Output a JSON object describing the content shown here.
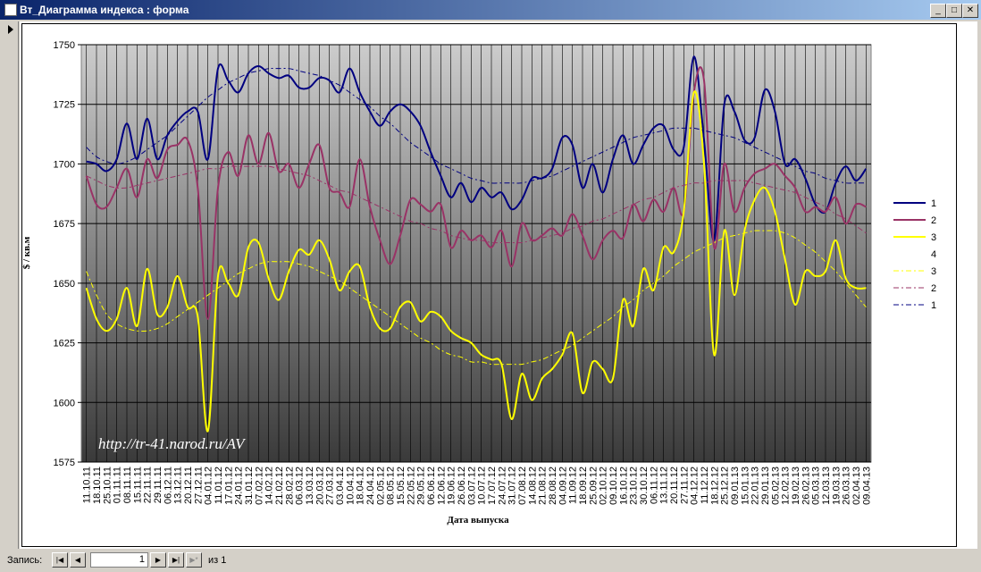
{
  "window": {
    "title": "Вт_Диаграмма индекса : форма",
    "record_label": "Запись:",
    "record": "1",
    "of": "из 1"
  },
  "chart_data": {
    "type": "line",
    "ylabel": "$ / кв.м",
    "xlabel": "Дата выпуска",
    "annotation": "http://tr-41.narod.ru/AV",
    "ylim": [
      1575,
      1750
    ],
    "yticks": [
      1575,
      1600,
      1625,
      1650,
      1675,
      1700,
      1725,
      1750
    ],
    "grid": true,
    "legend": "right",
    "categories": [
      "11.10.11",
      "18.10.11",
      "25.10.11",
      "01.11.11",
      "08.11.11",
      "15.11.11",
      "22.11.11",
      "29.11.11",
      "06.12.11",
      "13.12.11",
      "20.12.11",
      "27.12.11",
      "04.01.12",
      "11.01.12",
      "17.01.12",
      "24.01.12",
      "31.01.12",
      "07.02.12",
      "14.02.12",
      "21.02.12",
      "28.02.12",
      "06.03.12",
      "13.03.12",
      "20.03.12",
      "27.03.12",
      "03.04.12",
      "10.04.12",
      "18.04.12",
      "24.04.12",
      "02.05.12",
      "08.05.12",
      "15.05.12",
      "22.05.12",
      "29.05.12",
      "06.06.12",
      "12.06.12",
      "19.06.12",
      "26.06.12",
      "03.07.12",
      "10.07.12",
      "17.07.12",
      "24.07.12",
      "31.07.12",
      "07.08.12",
      "14.08.12",
      "21.08.12",
      "28.08.12",
      "04.09.12",
      "11.09.12",
      "18.09.12",
      "25.09.12",
      "02.10.12",
      "09.10.12",
      "16.10.12",
      "23.10.12",
      "30.10.12",
      "06.11.12",
      "13.11.12",
      "20.11.12",
      "27.11.12",
      "04.12.12",
      "11.12.12",
      "18.12.12",
      "25.12.12",
      "09.01.13",
      "15.01.13",
      "22.01.13",
      "29.01.13",
      "05.02.13",
      "12.02.13",
      "19.02.13",
      "26.02.13",
      "05.03.13",
      "12.03.13",
      "19.03.13",
      "26.03.13",
      "02.04.13",
      "09.04.13"
    ],
    "series": [
      {
        "name": "1",
        "color": "#000080",
        "width": 2,
        "dash": false,
        "values": [
          1701,
          1700,
          1697,
          1702,
          1717,
          1702,
          1719,
          1702,
          1712,
          1718,
          1722,
          1722,
          1702,
          1740,
          1735,
          1730,
          1738,
          1741,
          1738,
          1736,
          1737,
          1732,
          1732,
          1736,
          1735,
          1730,
          1740,
          1730,
          1722,
          1716,
          1722,
          1725,
          1722,
          1716,
          1705,
          1695,
          1686,
          1692,
          1684,
          1690,
          1686,
          1688,
          1681,
          1685,
          1694,
          1694,
          1698,
          1711,
          1708,
          1690,
          1700,
          1688,
          1702,
          1712,
          1700,
          1708,
          1715,
          1716,
          1706,
          1707,
          1745,
          1710,
          1668,
          1725,
          1722,
          1710,
          1711,
          1731,
          1722,
          1700,
          1702,
          1694,
          1683,
          1680,
          1692,
          1699,
          1693,
          1698
        ]
      },
      {
        "name": "2",
        "color": "#993366",
        "width": 2,
        "dash": false,
        "values": [
          1695,
          1683,
          1682,
          1690,
          1698,
          1686,
          1702,
          1694,
          1706,
          1708,
          1710,
          1690,
          1635,
          1690,
          1705,
          1695,
          1712,
          1700,
          1713,
          1697,
          1700,
          1690,
          1700,
          1708,
          1690,
          1688,
          1682,
          1702,
          1682,
          1668,
          1658,
          1670,
          1685,
          1683,
          1680,
          1683,
          1665,
          1672,
          1668,
          1670,
          1665,
          1672,
          1657,
          1675,
          1668,
          1670,
          1673,
          1670,
          1679,
          1670,
          1660,
          1668,
          1672,
          1669,
          1683,
          1676,
          1685,
          1680,
          1690,
          1680,
          1730,
          1735,
          1665,
          1700,
          1680,
          1690,
          1696,
          1698,
          1700,
          1695,
          1690,
          1680,
          1682,
          1680,
          1686,
          1675,
          1683,
          1682
        ]
      },
      {
        "name": "3",
        "color": "#ffff00",
        "width": 2,
        "dash": false,
        "values": [
          1648,
          1635,
          1630,
          1635,
          1648,
          1632,
          1656,
          1637,
          1640,
          1653,
          1640,
          1636,
          1588,
          1653,
          1650,
          1645,
          1665,
          1667,
          1652,
          1643,
          1655,
          1664,
          1662,
          1668,
          1660,
          1647,
          1655,
          1657,
          1640,
          1631,
          1631,
          1640,
          1642,
          1634,
          1638,
          1636,
          1630,
          1627,
          1625,
          1620,
          1618,
          1616,
          1593,
          1612,
          1601,
          1610,
          1614,
          1620,
          1629,
          1604,
          1617,
          1614,
          1610,
          1643,
          1632,
          1656,
          1647,
          1665,
          1663,
          1680,
          1730,
          1700,
          1620,
          1672,
          1645,
          1672,
          1685,
          1690,
          1680,
          1660,
          1641,
          1655,
          1653,
          1655,
          1668,
          1652,
          1648,
          1648
        ]
      },
      {
        "name": "4",
        "color": "#00ffff",
        "width": 2,
        "dash": false,
        "values": [
          null,
          null,
          null,
          null,
          null,
          null,
          null,
          null,
          null,
          null,
          null,
          null,
          null,
          null,
          null,
          null,
          null,
          null,
          null,
          null,
          null,
          null,
          null,
          null,
          null,
          null,
          null,
          null,
          null,
          null,
          null,
          null,
          null,
          null,
          null,
          null,
          null,
          null,
          null,
          null,
          null,
          null,
          null,
          null,
          null,
          null,
          null,
          null,
          null,
          null,
          null,
          null,
          null,
          null,
          null,
          null,
          null,
          null,
          null,
          null,
          null,
          null,
          null,
          null,
          null,
          null,
          null,
          null,
          null,
          null,
          null,
          null,
          null,
          null,
          null,
          null,
          null,
          null
        ]
      },
      {
        "name": "3",
        "color": "#ffff00",
        "width": 1,
        "dash": true,
        "values": [
          1655,
          1645,
          1637,
          1633,
          1631,
          1630,
          1630,
          1631,
          1633,
          1636,
          1639,
          1642,
          1645,
          1648,
          1651,
          1654,
          1656,
          1658,
          1659,
          1659,
          1659,
          1658,
          1657,
          1655,
          1653,
          1651,
          1648,
          1645,
          1642,
          1639,
          1636,
          1633,
          1630,
          1627,
          1625,
          1622,
          1620,
          1619,
          1617,
          1617,
          1616,
          1616,
          1616,
          1616,
          1617,
          1618,
          1620,
          1622,
          1624,
          1627,
          1630,
          1633,
          1636,
          1640,
          1643,
          1647,
          1650,
          1653,
          1657,
          1660,
          1663,
          1665,
          1667,
          1669,
          1670,
          1671,
          1672,
          1672,
          1672,
          1671,
          1669,
          1666,
          1663,
          1659,
          1655,
          1650,
          1645,
          1640
        ]
      },
      {
        "name": "2",
        "color": "#993366",
        "width": 1,
        "dash": true,
        "values": [
          1695,
          1693,
          1691,
          1690,
          1690,
          1691,
          1692,
          1693,
          1694,
          1695,
          1696,
          1697,
          1698,
          1698,
          1699,
          1699,
          1699,
          1699,
          1699,
          1698,
          1697,
          1696,
          1695,
          1693,
          1691,
          1689,
          1688,
          1686,
          1684,
          1682,
          1680,
          1678,
          1676,
          1675,
          1673,
          1672,
          1670,
          1669,
          1668,
          1668,
          1667,
          1667,
          1667,
          1667,
          1668,
          1669,
          1670,
          1671,
          1673,
          1674,
          1676,
          1677,
          1679,
          1681,
          1683,
          1685,
          1686,
          1688,
          1690,
          1691,
          1692,
          1692,
          1693,
          1693,
          1693,
          1693,
          1692,
          1691,
          1690,
          1689,
          1688,
          1686,
          1684,
          1682,
          1679,
          1677,
          1674,
          1671
        ]
      },
      {
        "name": "1",
        "color": "#000080",
        "width": 1,
        "dash": true,
        "values": [
          1707,
          1703,
          1701,
          1700,
          1701,
          1703,
          1706,
          1709,
          1712,
          1716,
          1720,
          1724,
          1728,
          1731,
          1734,
          1736,
          1738,
          1739,
          1740,
          1740,
          1740,
          1739,
          1738,
          1737,
          1735,
          1733,
          1730,
          1727,
          1724,
          1720,
          1717,
          1713,
          1709,
          1706,
          1703,
          1700,
          1698,
          1696,
          1694,
          1693,
          1692,
          1692,
          1692,
          1692,
          1693,
          1694,
          1695,
          1697,
          1699,
          1701,
          1703,
          1705,
          1707,
          1709,
          1711,
          1712,
          1713,
          1714,
          1715,
          1715,
          1715,
          1714,
          1713,
          1712,
          1711,
          1709,
          1707,
          1705,
          1703,
          1701,
          1699,
          1697,
          1696,
          1694,
          1693,
          1692,
          1692,
          1692
        ]
      }
    ]
  }
}
